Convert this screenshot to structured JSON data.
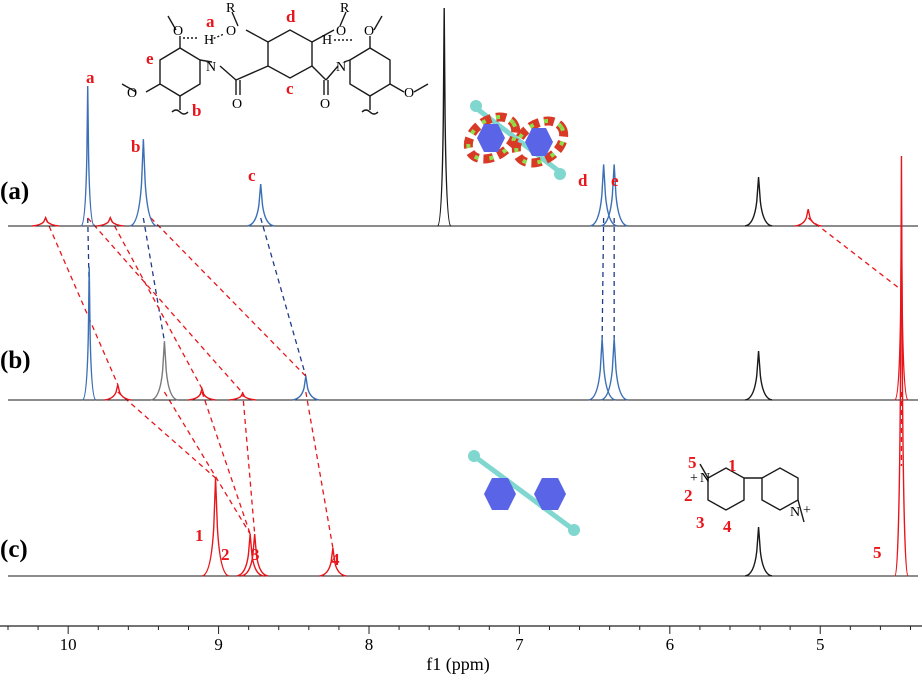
{
  "colors": {
    "black": "#1a1a1a",
    "blue": "#3b6fb6",
    "red": "#e8161b",
    "gray": "#7a7a7a",
    "navy_dash": "#1f3c88",
    "red_dash": "#e8161b",
    "cyan": "#7fd7cf",
    "hex_blue": "#5a64e6",
    "ring_red": "#d93a26",
    "ring_green": "#8ee04a"
  },
  "chart_data": {
    "type": "line",
    "xlabel": "f1 (ppm)",
    "xlim": [
      10.4,
      4.35
    ],
    "x_inverted": true,
    "grid": false,
    "xticks": [
      10,
      9,
      8,
      7,
      6,
      5
    ],
    "xtick_labels": [
      "10",
      "9",
      "8",
      "7",
      "6",
      "5"
    ],
    "series": [
      {
        "name": "(a)",
        "peaks": [
          {
            "label": "a",
            "ppm": 9.87,
            "height": 1.0,
            "color": "blue"
          },
          {
            "label": "b",
            "ppm": 9.5,
            "height": 0.62,
            "color": "blue"
          },
          {
            "label": "c",
            "ppm": 8.72,
            "height": 0.3,
            "color": "blue"
          },
          {
            "label": "d",
            "ppm": 6.44,
            "height": 0.44,
            "color": "blue"
          },
          {
            "label": "e",
            "ppm": 6.37,
            "height": 0.44,
            "color": "blue"
          },
          {
            "ppm": 10.15,
            "height": 0.06,
            "color": "red"
          },
          {
            "ppm": 9.72,
            "height": 0.06,
            "color": "red"
          },
          {
            "ppm": 5.08,
            "height": 0.12,
            "color": "red"
          },
          {
            "ppm": 7.5,
            "height": 2.1,
            "color": "black"
          },
          {
            "ppm": 5.41,
            "height": 0.35,
            "color": "black"
          }
        ]
      },
      {
        "name": "(b)",
        "peaks": [
          {
            "ppm": 9.86,
            "height": 0.95,
            "color": "blue"
          },
          {
            "ppm": 9.36,
            "height": 0.42,
            "color": "gray"
          },
          {
            "ppm": 8.42,
            "height": 0.17,
            "color": "blue"
          },
          {
            "ppm": 6.45,
            "height": 0.44,
            "color": "blue"
          },
          {
            "ppm": 6.37,
            "height": 0.44,
            "color": "blue"
          },
          {
            "ppm": 9.67,
            "height": 0.11,
            "color": "red"
          },
          {
            "ppm": 9.11,
            "height": 0.08,
            "color": "red"
          },
          {
            "ppm": 8.84,
            "height": 0.05,
            "color": "red"
          },
          {
            "ppm": 4.46,
            "height": 1.2,
            "color": "red"
          },
          {
            "ppm": 5.41,
            "height": 0.35,
            "color": "black"
          }
        ]
      },
      {
        "name": "(c)",
        "peaks": [
          {
            "label": "1",
            "ppm": 9.02,
            "height": 0.7,
            "color": "red"
          },
          {
            "label": "2",
            "ppm": 8.79,
            "height": 0.3,
            "color": "red"
          },
          {
            "label": "3",
            "ppm": 8.76,
            "height": 0.3,
            "color": "red"
          },
          {
            "label": "4",
            "ppm": 8.24,
            "height": 0.2,
            "color": "red"
          },
          {
            "label": "5",
            "ppm": 4.46,
            "height": 3.0,
            "color": "red"
          },
          {
            "ppm": 5.41,
            "height": 0.35,
            "color": "black"
          }
        ]
      }
    ],
    "correlations": [
      {
        "from_series": "(a)",
        "from_ppm": 9.87,
        "to_series": "(b)",
        "to_ppm": 9.86,
        "color": "navy_dash"
      },
      {
        "from_series": "(a)",
        "from_ppm": 9.5,
        "to_series": "(b)",
        "to_ppm": 9.36,
        "color": "navy_dash"
      },
      {
        "from_series": "(a)",
        "from_ppm": 8.72,
        "to_series": "(b)",
        "to_ppm": 8.42,
        "color": "navy_dash"
      },
      {
        "from_series": "(a)",
        "from_ppm": 6.44,
        "to_series": "(b)",
        "to_ppm": 6.45,
        "color": "navy_dash"
      },
      {
        "from_series": "(a)",
        "from_ppm": 6.37,
        "to_series": "(b)",
        "to_ppm": 6.37,
        "color": "navy_dash"
      },
      {
        "from_series": "(a)",
        "from_ppm": 10.15,
        "to_series": "(b)",
        "to_ppm": 9.67,
        "color": "red_dash"
      },
      {
        "from_series": "(a)",
        "from_ppm": 9.72,
        "to_series": "(b)",
        "to_ppm": 9.11,
        "color": "red_dash"
      },
      {
        "from_series": "(a)",
        "from_ppm": 9.87,
        "to_series": "(b)",
        "to_ppm": 8.84,
        "color": "red_dash"
      },
      {
        "from_series": "(a)",
        "from_ppm": 9.45,
        "to_series": "(b)",
        "to_ppm": 8.42,
        "color": "red_dash"
      },
      {
        "from_series": "(a)",
        "from_ppm": 5.08,
        "to_series": "(b)",
        "to_ppm": 4.46,
        "color": "red_dash"
      },
      {
        "from_series": "(b)",
        "from_ppm": 9.67,
        "to_series": "(c)",
        "to_ppm": 9.02,
        "color": "red_dash"
      },
      {
        "from_series": "(b)",
        "from_ppm": 9.11,
        "to_series": "(c)",
        "to_ppm": 8.79,
        "color": "red_dash"
      },
      {
        "from_series": "(b)",
        "from_ppm": 8.84,
        "to_series": "(c)",
        "to_ppm": 8.76,
        "color": "red_dash"
      },
      {
        "from_series": "(b)",
        "from_ppm": 9.36,
        "to_series": "(c)",
        "to_ppm": 8.79,
        "color": "red_dash"
      },
      {
        "from_series": "(b)",
        "from_ppm": 8.42,
        "to_series": "(c)",
        "to_ppm": 8.24,
        "color": "red_dash"
      },
      {
        "from_series": "(b)",
        "from_ppm": 4.46,
        "to_series": "(c)",
        "to_ppm": 4.46,
        "color": "red_dash"
      }
    ]
  },
  "panels": {
    "a": "(a)",
    "b": "(b)",
    "c": "(c)"
  },
  "host_structure": {
    "proton_labels": [
      "a",
      "b",
      "c",
      "d",
      "e"
    ],
    "substituent_R": "R",
    "atom_O": "O",
    "atom_N": "N",
    "atom_H": "H"
  },
  "guest_structure": {
    "atom_labels": [
      "5",
      "1",
      "2",
      "3",
      "4"
    ],
    "atom_N": "N",
    "charge": "+"
  }
}
